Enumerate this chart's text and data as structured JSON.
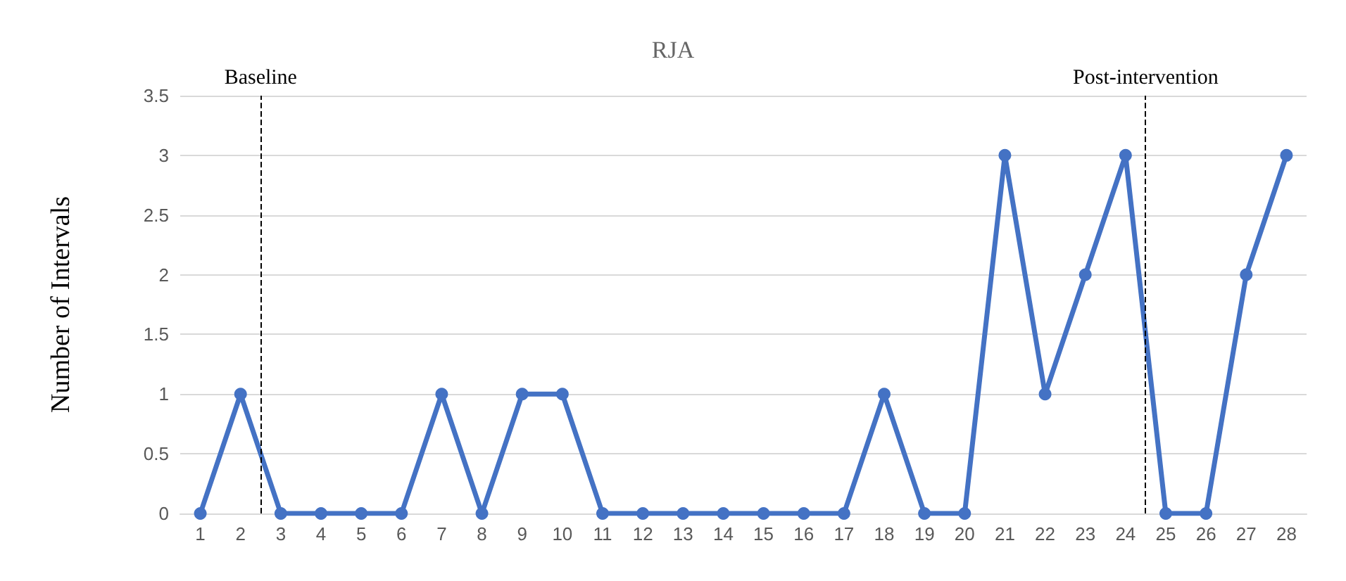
{
  "chart_data": {
    "type": "line",
    "title": "RJA",
    "ylabel": "Number of Intervals",
    "x": [
      1,
      2,
      3,
      4,
      5,
      6,
      7,
      8,
      9,
      10,
      11,
      12,
      13,
      14,
      15,
      16,
      17,
      18,
      19,
      20,
      21,
      22,
      23,
      24,
      25,
      26,
      27,
      28
    ],
    "series": [
      {
        "color": "#4472c4",
        "values": [
          0,
          1,
          0,
          0,
          0,
          0,
          1,
          0,
          1,
          1,
          0,
          0,
          0,
          0,
          0,
          0,
          0,
          1,
          0,
          0,
          3,
          1,
          2,
          3,
          0,
          0,
          2,
          3
        ]
      }
    ],
    "xlim": [
      0.5,
      28.5
    ],
    "xticks": [
      1,
      2,
      3,
      4,
      5,
      6,
      7,
      8,
      9,
      10,
      11,
      12,
      13,
      14,
      15,
      16,
      17,
      18,
      19,
      20,
      21,
      22,
      23,
      24,
      25,
      26,
      27,
      28
    ],
    "ylim": [
      0,
      3.5
    ],
    "yticks": [
      0,
      0.5,
      1,
      1.5,
      2,
      2.5,
      3,
      3.5
    ],
    "ref_lines": [
      {
        "axis": "x",
        "value": 2.5,
        "line_style": "dashed",
        "color": "#000000",
        "label": "Baseline"
      },
      {
        "axis": "x",
        "value": 24.5,
        "line_style": "dashed",
        "color": "#000000",
        "label": "Post-intervention"
      }
    ],
    "grid": "y",
    "marker": "circle",
    "line_style": "solid"
  }
}
